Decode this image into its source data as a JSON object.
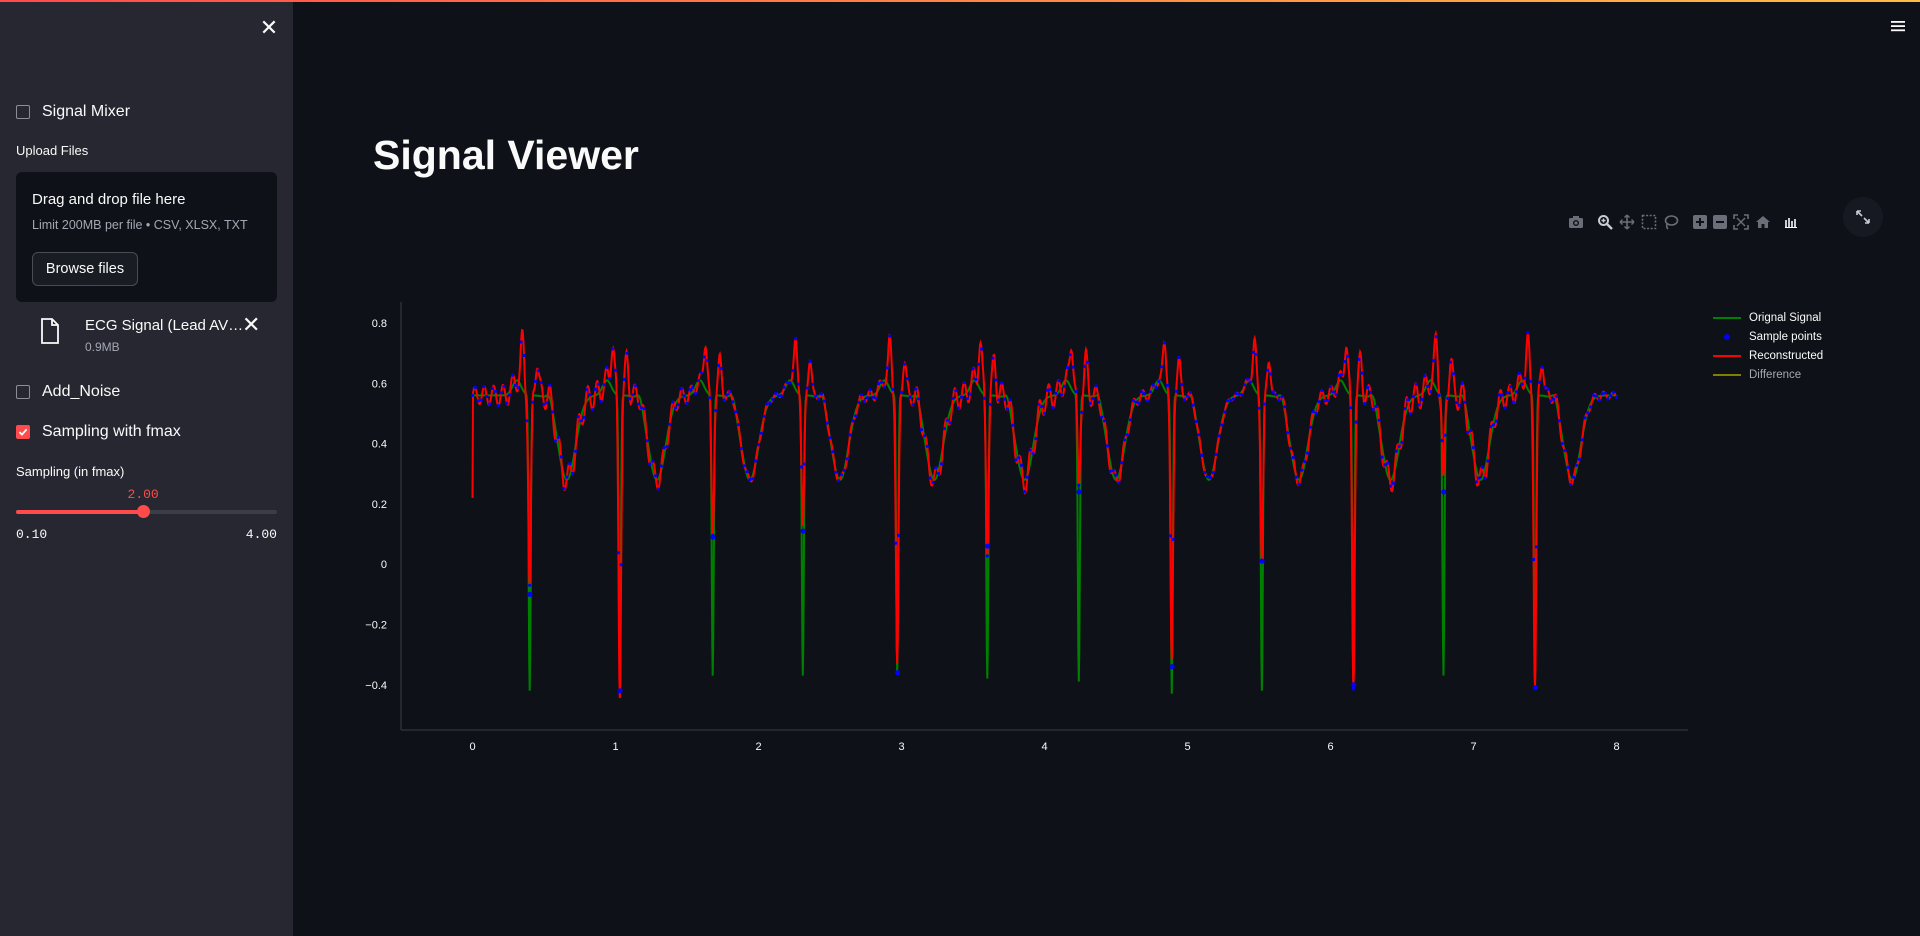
{
  "sidebar": {
    "signal_mixer_label": "Signal Mixer",
    "upload_label": "Upload Files",
    "dropzone_title": "Drag and drop file here",
    "dropzone_limit": "Limit 200MB per file • CSV, XLSX, TXT",
    "browse_label": "Browse files",
    "file": {
      "name": "ECG Signal (Lead AVR).csv",
      "size": "0.9MB"
    },
    "add_noise_label": "Add_Noise",
    "sampling_fmax_label": "Sampling with fmax",
    "sampling_fmax_checked": true,
    "slider": {
      "label": "Sampling (in fmax)",
      "value": 2.0,
      "value_text": "2.00",
      "min": 0.1,
      "max": 4.0,
      "min_text": "0.10",
      "max_text": "4.00"
    }
  },
  "main": {
    "title": "Signal Viewer"
  },
  "modebar": [
    "camera-icon",
    "zoom-icon",
    "pan-icon",
    "box-select-icon",
    "lasso-icon",
    "zoom-in-icon",
    "zoom-out-icon",
    "autoscale-icon",
    "home-icon",
    "spikelines-icon"
  ],
  "colors": {
    "accent": "#ff4b4b",
    "original": "#008000",
    "samples": "#0000ff",
    "reconstructed": "#ff0000",
    "difference": "#808000"
  },
  "chart_data": {
    "type": "line",
    "xlim": [
      -0.5,
      8.5
    ],
    "ylim": [
      -0.55,
      0.87
    ],
    "x_ticks": [
      0,
      1,
      2,
      3,
      4,
      5,
      6,
      7,
      8
    ],
    "y_ticks": [
      -0.4,
      -0.2,
      0,
      0.2,
      0.4,
      0.6,
      0.8
    ],
    "y_tick_labels": [
      "−0.4",
      "−0.2",
      "0",
      "0.2",
      "0.4",
      "0.6",
      "0.8"
    ],
    "legend_position": "top-right",
    "series": [
      {
        "name": "Orignal Signal",
        "color": "#008000",
        "mode": "line",
        "r_peak_minimum": [
          -0.43,
          -0.41,
          -0.38,
          -0.38,
          -0.37,
          -0.39,
          -0.4,
          -0.44,
          -0.43,
          -0.4,
          -0.38,
          -0.41
        ]
      },
      {
        "name": "Sample points",
        "color": "#0000ff",
        "mode": "markers"
      },
      {
        "name": "Reconstructed",
        "color": "#ff0000",
        "mode": "line",
        "r_peak_minimum": [
          -0.1,
          -0.42,
          0.09,
          0.11,
          -0.36,
          0.06,
          0.24,
          -0.34,
          0.01,
          -0.4,
          0.24,
          -0.41
        ]
      },
      {
        "name": "Difference",
        "color": "#808000",
        "mode": "line"
      }
    ],
    "beat_times": [
      0.4,
      1.03,
      1.68,
      2.31,
      2.97,
      3.6,
      4.24,
      4.89,
      5.52,
      6.16,
      6.79,
      7.43
    ],
    "reconstructed_start": [
      0.0,
      0.22
    ]
  }
}
